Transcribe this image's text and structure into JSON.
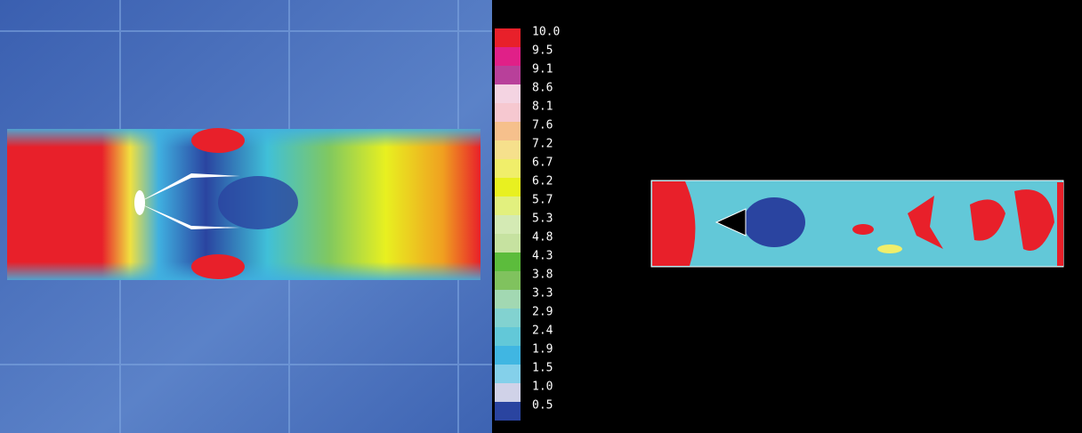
{
  "legend": {
    "labels": [
      "10.0",
      "9.5",
      "9.1",
      "8.6",
      "8.1",
      "7.6",
      "7.2",
      "6.7",
      "6.2",
      "5.7",
      "5.3",
      "4.8",
      "4.3",
      "3.8",
      "3.3",
      "2.9",
      "2.4",
      "1.9",
      "1.5",
      "1.0",
      "0.5"
    ],
    "colors": [
      "#e8202a",
      "#e02088",
      "#b8409a",
      "#f4d4e2",
      "#f6c8d0",
      "#f6c08c",
      "#f6e08c",
      "#f0ee6a",
      "#e8f020",
      "#e2f07e",
      "#d4eab4",
      "#c6e2a0",
      "#5cbc3c",
      "#80c25e",
      "#a2d8b2",
      "#82d2d0",
      "#62c8d8",
      "#40b6e2",
      "#84d0ea",
      "#d0d2e8",
      "#2a44a0"
    ]
  }
}
